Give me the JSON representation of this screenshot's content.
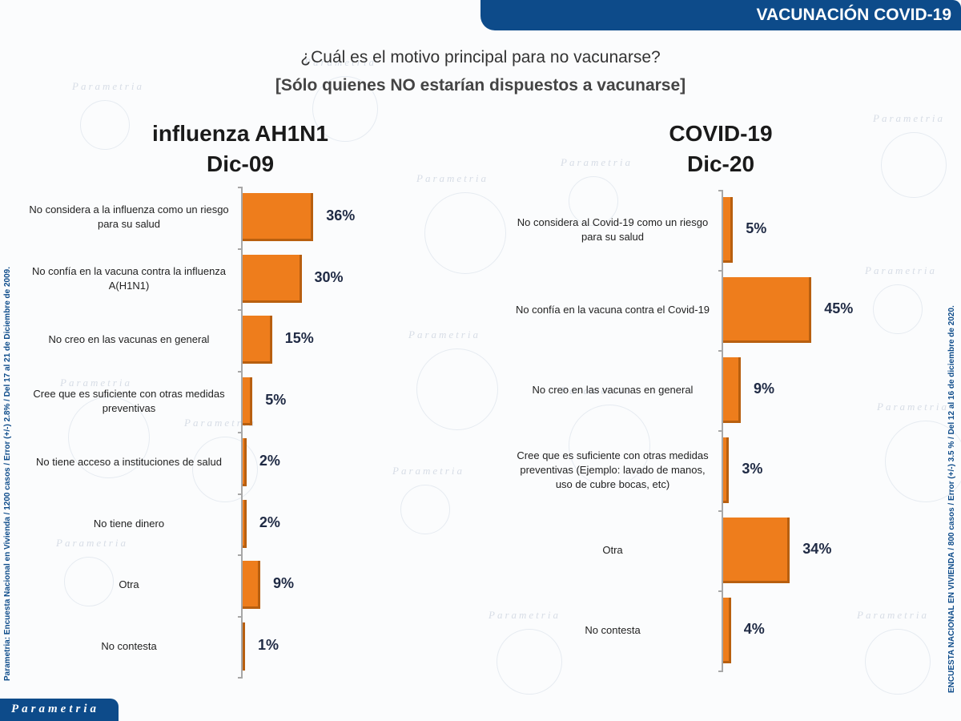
{
  "header": {
    "banner": "VACUNACIÓN COVID-19"
  },
  "question": "¿Cuál es el motivo principal para no vacunarse?",
  "subtitle": "[Sólo quienes NO estarían dispuestos a vacunarse]",
  "side_left": "Parametria: Encuesta Nacional en Vivienda / 1200 casos / Error (+/-) 2.8% / Del 17 al 21 de Diciembre de 2009.",
  "side_right": "ENCUESTA NACIONAL EN VIVIENDA / 800 casos / Error (+/-) 3.5 % / Del 12 al 16 de diciembre de 2020.",
  "logo": "Parametria",
  "watermark": "Parametria",
  "colors": {
    "bar": "#ee7d1c",
    "banner": "#0d4b8a"
  },
  "chart_data": [
    {
      "type": "bar",
      "orientation": "horizontal",
      "title": "influenza AH1N1",
      "subtitle": "Dic-09",
      "categories": [
        "No considera a la influenza como un riesgo para su salud",
        "No confía en la vacuna contra la influenza A(H1N1)",
        "No creo en las vacunas en general",
        "Cree que es suficiente con otras medidas preventivas",
        "No tiene acceso a instituciones de salud",
        "No tiene dinero",
        "Otra",
        "No contesta"
      ],
      "values": [
        36,
        30,
        15,
        5,
        2,
        2,
        9,
        1
      ],
      "labels": [
        "36%",
        "30%",
        "15%",
        "5%",
        "2%",
        "2%",
        "9%",
        "1%"
      ],
      "unit": "%"
    },
    {
      "type": "bar",
      "orientation": "horizontal",
      "title": "COVID-19",
      "subtitle": "Dic-20",
      "categories": [
        "No considera al Covid-19 como un riesgo para su salud",
        "No confía en la vacuna contra el Covid-19",
        "No creo en las vacunas en general",
        "Cree que es suficiente con otras medidas preventivas (Ejemplo: lavado de manos, uso de cubre bocas, etc)",
        "Otra",
        "No contesta"
      ],
      "values": [
        5,
        45,
        9,
        3,
        34,
        4
      ],
      "labels": [
        "5%",
        "45%",
        "9%",
        "3%",
        "34%",
        "4%"
      ],
      "unit": "%"
    }
  ]
}
